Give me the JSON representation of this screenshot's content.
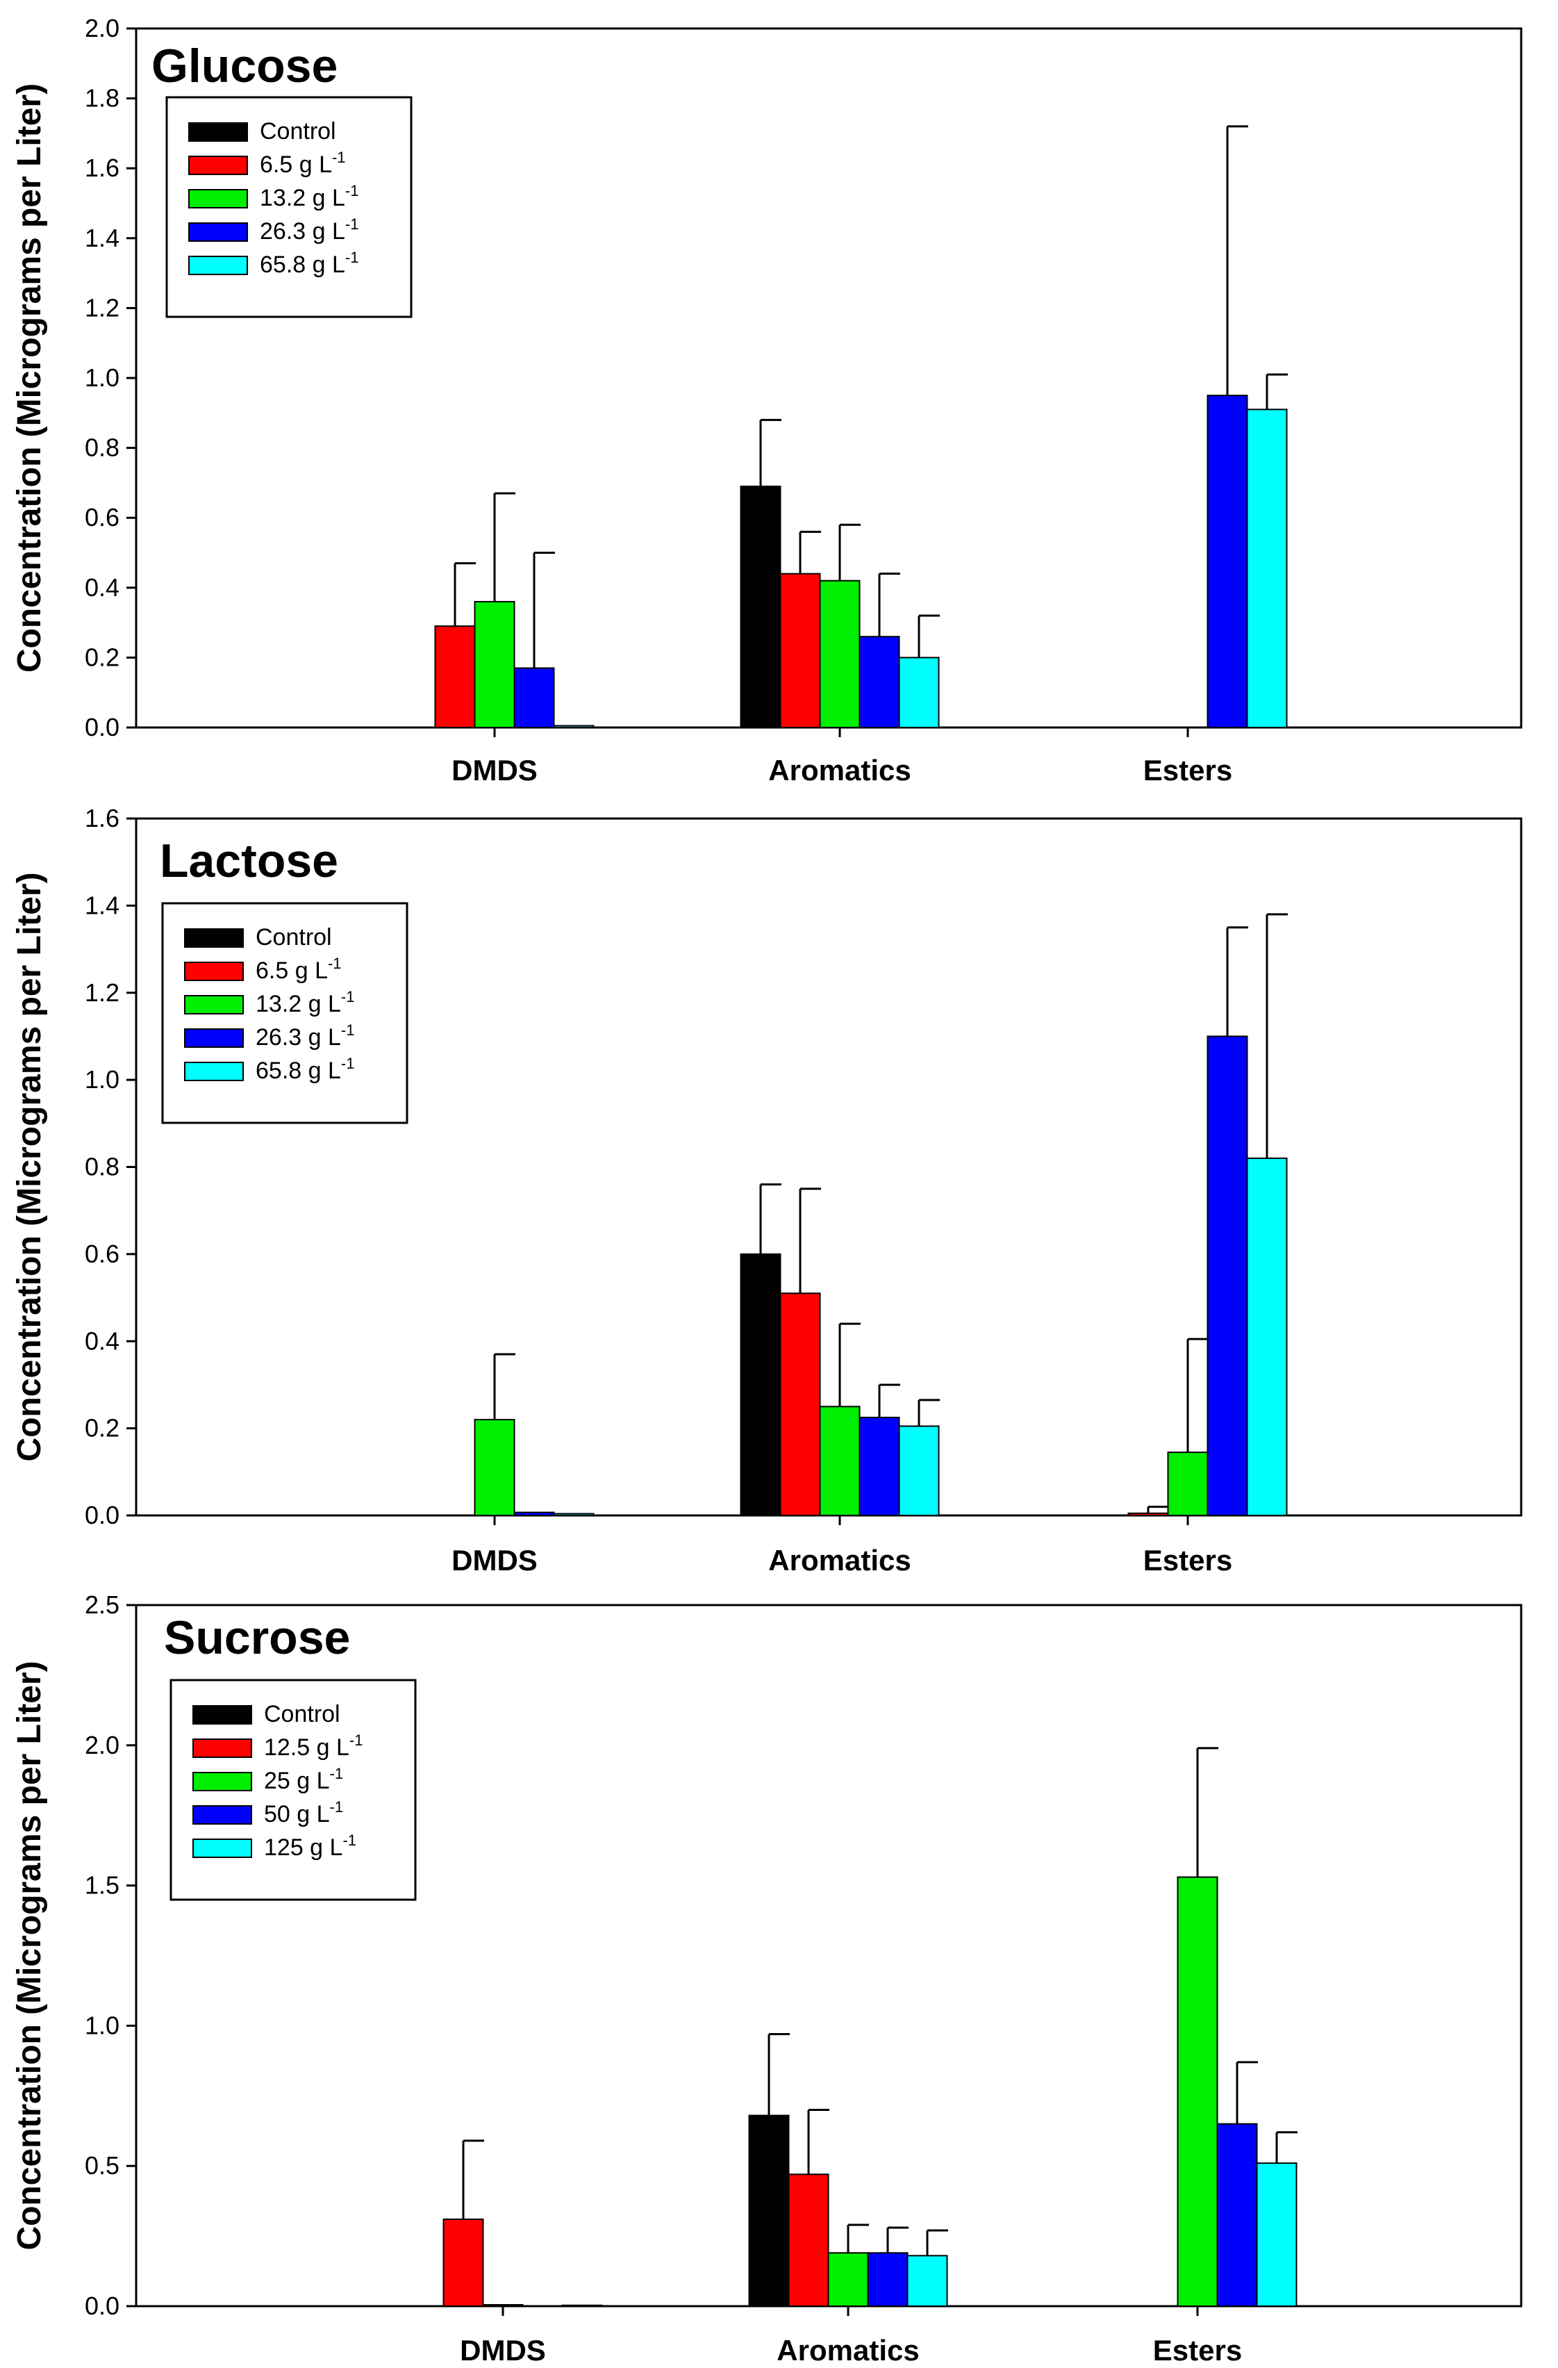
{
  "chart_data": [
    {
      "type": "bar",
      "title": "Glucose",
      "ylabel": "Concentration (Micrograms per Liter)",
      "xlabel": "",
      "ylim": [
        0,
        2.0
      ],
      "yticks": [
        "0.0",
        "0.2",
        "0.4",
        "0.6",
        "0.8",
        "1.0",
        "1.2",
        "1.4",
        "1.6",
        "1.8",
        "2.0"
      ],
      "yticks_values": [
        0,
        0.2,
        0.4,
        0.6,
        0.8,
        1.0,
        1.2,
        1.4,
        1.6,
        1.8,
        2.0
      ],
      "categories": [
        "DMDS",
        "Aromatics",
        "Esters"
      ],
      "series": [
        {
          "name": "Control",
          "base": "Control",
          "sup": "",
          "color": "#000000",
          "values": [
            0,
            0.69,
            0
          ],
          "errors": [
            0,
            0.19,
            0
          ]
        },
        {
          "name": "6.5 g L-1",
          "base": "6.5 g L",
          "sup": "-1",
          "color": "#ff0000",
          "values": [
            0.29,
            0.44,
            0
          ],
          "errors": [
            0.18,
            0.12,
            0
          ]
        },
        {
          "name": "13.2 g L-1",
          "base": "13.2 g L",
          "sup": "-1",
          "color": "#00ee00",
          "values": [
            0.36,
            0.42,
            0
          ],
          "errors": [
            0.31,
            0.16,
            0
          ]
        },
        {
          "name": "26.3 g L-1",
          "base": "26.3 g L",
          "sup": "-1",
          "color": "#0000ff",
          "values": [
            0.17,
            0.26,
            0.95
          ],
          "errors": [
            0.33,
            0.18,
            0.77
          ]
        },
        {
          "name": "65.8 g L-1",
          "base": "65.8 g L",
          "sup": "-1",
          "color": "#00ffff",
          "values": [
            0.005,
            0.2,
            0.91
          ],
          "errors": [
            0,
            0.12,
            0.1
          ]
        }
      ]
    },
    {
      "type": "bar",
      "title": "Lactose",
      "ylabel": "Concentration (Micrograms per Liter)",
      "xlabel": "",
      "ylim": [
        0,
        1.6
      ],
      "yticks": [
        "0.0",
        "0.2",
        "0.4",
        "0.6",
        "0.8",
        "1.0",
        "1.2",
        "1.4",
        "1.6"
      ],
      "yticks_values": [
        0,
        0.2,
        0.4,
        0.6,
        0.8,
        1.0,
        1.2,
        1.4,
        1.6
      ],
      "categories": [
        "DMDS",
        "Aromatics",
        "Esters"
      ],
      "series": [
        {
          "name": "Control",
          "base": "Control",
          "sup": "",
          "color": "#000000",
          "values": [
            0,
            0.6,
            0
          ],
          "errors": [
            0,
            0.16,
            0
          ]
        },
        {
          "name": "6.5 g L-1",
          "base": "6.5 g L",
          "sup": "-1",
          "color": "#ff0000",
          "values": [
            0,
            0.51,
            0.005
          ],
          "errors": [
            0,
            0.24,
            0.015
          ]
        },
        {
          "name": "13.2 g L-1",
          "base": "13.2 g L",
          "sup": "-1",
          "color": "#00ee00",
          "values": [
            0.22,
            0.25,
            0.145
          ],
          "errors": [
            0.15,
            0.19,
            0.26
          ]
        },
        {
          "name": "26.3 g L-1",
          "base": "26.3 g L",
          "sup": "-1",
          "color": "#0000ff",
          "values": [
            0.007,
            0.225,
            1.1
          ],
          "errors": [
            0,
            0.075,
            0.25
          ]
        },
        {
          "name": "65.8 g L-1",
          "base": "65.8 g L",
          "sup": "-1",
          "color": "#00ffff",
          "values": [
            0.004,
            0.205,
            0.82
          ],
          "errors": [
            0,
            0.06,
            0.56
          ]
        }
      ]
    },
    {
      "type": "bar",
      "title": "Sucrose",
      "ylabel": "Concentration (Micrograms per Liter)",
      "xlabel": "",
      "ylim": [
        0,
        2.5
      ],
      "yticks": [
        "0.0",
        "0.5",
        "1.0",
        "1.5",
        "2.0",
        "2.5"
      ],
      "yticks_values": [
        0,
        0.5,
        1.0,
        1.5,
        2.0,
        2.5
      ],
      "categories": [
        "DMDS",
        "Aromatics",
        "Esters"
      ],
      "series": [
        {
          "name": "Control",
          "base": "Control",
          "sup": "",
          "color": "#000000",
          "values": [
            0,
            0.68,
            0
          ],
          "errors": [
            0,
            0.29,
            0
          ]
        },
        {
          "name": "12.5 g L-1",
          "base": "12.5 g L",
          "sup": "-1",
          "color": "#ff0000",
          "values": [
            0.31,
            0.47,
            0
          ],
          "errors": [
            0.28,
            0.23,
            0
          ]
        },
        {
          "name": "25 g L-1",
          "base": "25 g L",
          "sup": "-1",
          "color": "#00ee00",
          "values": [
            0.005,
            0.19,
            1.53
          ],
          "errors": [
            0,
            0.1,
            0.46
          ]
        },
        {
          "name": "50 g L-1",
          "base": "50 g L",
          "sup": "-1",
          "color": "#0000ff",
          "values": [
            0,
            0.19,
            0.65
          ],
          "errors": [
            0,
            0.09,
            0.22
          ]
        },
        {
          "name": "125 g L-1",
          "base": "125 g L",
          "sup": "-1",
          "color": "#00ffff",
          "values": [
            0.003,
            0.18,
            0.51
          ],
          "errors": [
            0,
            0.09,
            0.11
          ]
        }
      ]
    }
  ]
}
